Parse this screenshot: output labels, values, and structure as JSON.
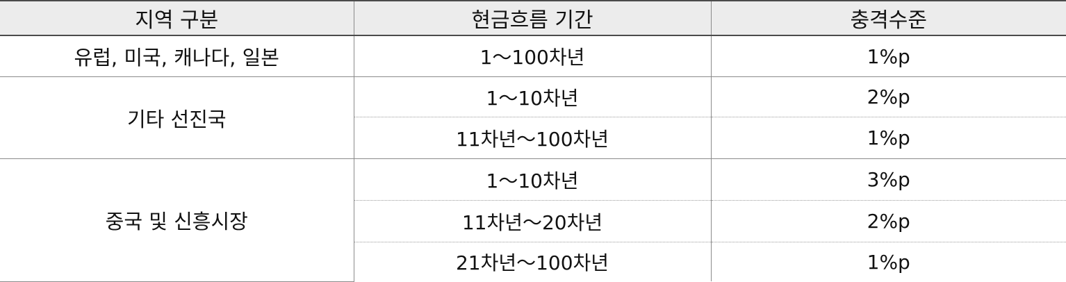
{
  "table": {
    "headers": [
      "지역 구분",
      "현금흐름 기간",
      "충격수준"
    ],
    "groups": [
      {
        "region": "유럽, 미국, 캐나다, 일본",
        "rows": [
          {
            "period": "1～100차년",
            "shock": "1%p"
          }
        ]
      },
      {
        "region": "기타 선진국",
        "rows": [
          {
            "period": "1～10차년",
            "shock": "2%p"
          },
          {
            "period": "11차년～100차년",
            "shock": "1%p"
          }
        ]
      },
      {
        "region": "중국 및 신흥시장",
        "rows": [
          {
            "period": "1～10차년",
            "shock": "3%p"
          },
          {
            "period": "11차년～20차년",
            "shock": "2%p"
          },
          {
            "period": "21차년～100차년",
            "shock": "1%p"
          }
        ]
      }
    ]
  }
}
